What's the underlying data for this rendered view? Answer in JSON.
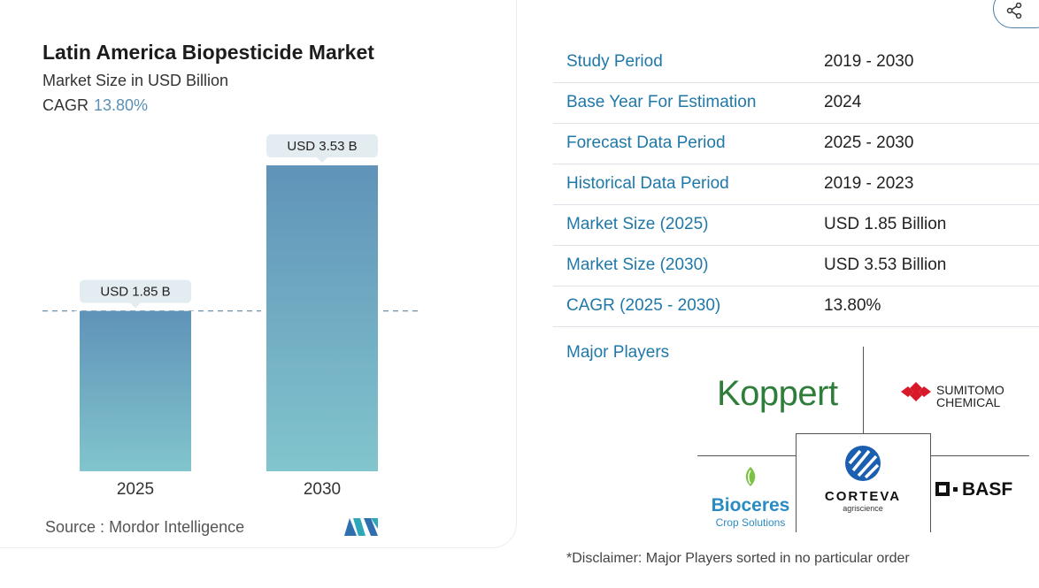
{
  "header": {
    "title": "Latin America Biopesticide Market",
    "subtitle": "Market Size in USD Billion",
    "cagr_label": "CAGR",
    "cagr_value": "13.80%"
  },
  "chart_data": {
    "type": "bar",
    "title": "Latin America Biopesticide Market",
    "ylabel": "Market Size in USD Billion",
    "categories": [
      "2025",
      "2030"
    ],
    "values": [
      1.85,
      3.53
    ],
    "data_labels": [
      "USD 1.85 B",
      "USD 3.53 B"
    ],
    "ylim": [
      0,
      3.53
    ],
    "reference_line": 1.85,
    "grid": false,
    "bar_gradient": [
      "#5f93b8",
      "#82c5cd"
    ],
    "label_bg": "#e3ecf0"
  },
  "source": {
    "label": "Source :",
    "name": "Mordor Intelligence"
  },
  "table": {
    "rows": [
      {
        "key": "Study Period",
        "value": "2019 - 2030"
      },
      {
        "key": "Base Year For Estimation",
        "value": "2024"
      },
      {
        "key": "Forecast Data Period",
        "value": "2025 - 2030"
      },
      {
        "key": "Historical Data Period",
        "value": "2019 - 2023"
      },
      {
        "key": "Market Size (2025)",
        "value": "USD 1.85 Billion"
      },
      {
        "key": "Market Size (2030)",
        "value": "USD 3.53 Billion"
      },
      {
        "key": "CAGR (2025 - 2030)",
        "value": "13.80%"
      }
    ]
  },
  "players": {
    "label": "Major Players",
    "koppert": "Koppert",
    "sumitomo_line1": "SUMITOMO",
    "sumitomo_line2": "CHEMICAL",
    "bioceres_name": "Bioceres",
    "bioceres_sub": "Crop Solutions",
    "corteva_name": "CORTEVA",
    "corteva_sub": "agriscience",
    "basf": "BASF"
  },
  "disclaimer": "*Disclaimer: Major Players sorted in no particular order",
  "colors": {
    "accent": "#1f78a8",
    "cagr": "#5b8fb5"
  },
  "icons": {
    "share": "share-icon"
  }
}
